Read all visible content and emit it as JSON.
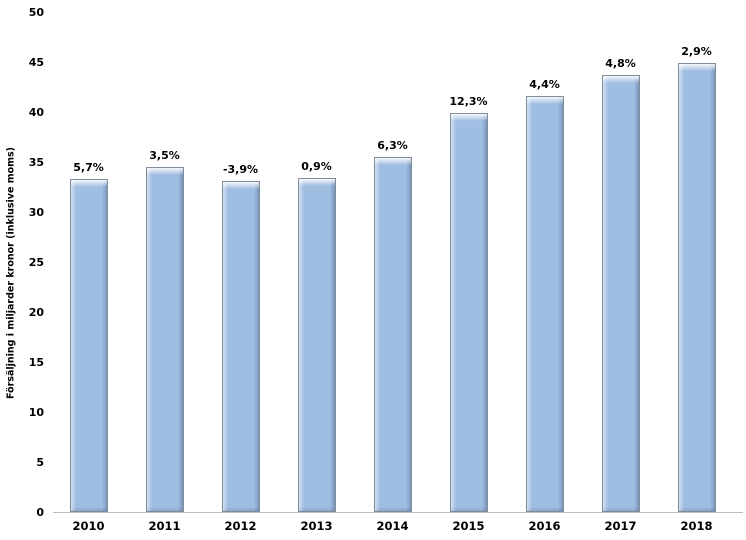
{
  "chart_data": {
    "type": "bar",
    "title": "",
    "xlabel": "",
    "ylabel": "Försäljning i miljarder kronor (inklusive moms)",
    "categories": [
      "2010",
      "2011",
      "2012",
      "2013",
      "2014",
      "2015",
      "2016",
      "2017",
      "2018"
    ],
    "values": [
      33.3,
      34.5,
      33.1,
      33.4,
      35.5,
      39.9,
      41.6,
      43.7,
      44.9
    ],
    "bar_labels": [
      "5,7%",
      "3,5%",
      "-3,9%",
      "0,9%",
      "6,3%",
      "12,3%",
      "4,4%",
      "4,8%",
      "2,9%"
    ],
    "ylim": [
      0,
      50
    ],
    "yticks": [
      0,
      5,
      10,
      15,
      20,
      25,
      30,
      35,
      40,
      45,
      50
    ],
    "grid": false,
    "legend": null,
    "bar_color": "#a0bde2",
    "bar_border_color": "#7e8c9c",
    "axis_line_color": "#bfbfbf",
    "text_color": "#000000"
  }
}
